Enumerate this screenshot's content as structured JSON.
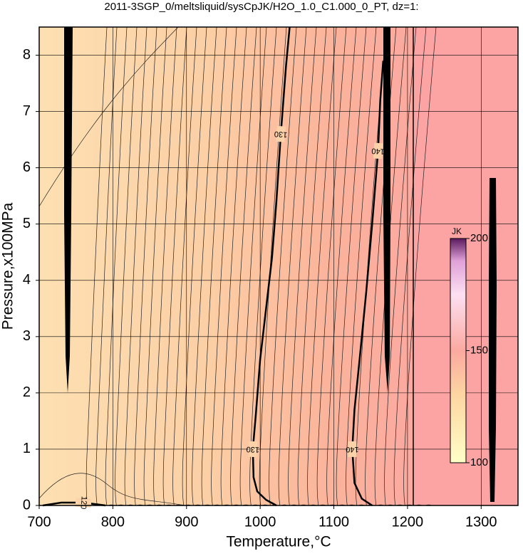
{
  "chart_data": {
    "type": "contour",
    "title": "2011-3SGP_0/meltsliquid/sysCpJK/H2O_1.0_C1.000_0_PT, dz=1:",
    "xlabel": "Temperature,°C",
    "ylabel": "Pressure,x100MPa",
    "xlim": [
      700,
      1350
    ],
    "ylim": [
      0,
      8.5
    ],
    "xticks": [
      700,
      800,
      900,
      1000,
      1100,
      1200,
      1300
    ],
    "yticks": [
      0,
      1,
      2,
      3,
      4,
      5,
      6,
      7,
      8
    ],
    "grid": true,
    "contours": [
      {
        "level": 130,
        "x": [
          1040,
          1035,
          1028,
          1022,
          1016
        ],
        "y": [
          8.5,
          7.8,
          6.6,
          5.4,
          4.4
        ]
      },
      {
        "level": 130,
        "x": [
          1016,
          1008,
          1000,
          994,
          990,
          991,
          996,
          1008,
          1022
        ],
        "y": [
          4.4,
          3.5,
          2.6,
          1.6,
          1.0,
          0.5,
          0.25,
          0.1,
          0
        ]
      },
      {
        "level": 140,
        "x": [
          1167,
          1163,
          1160,
          1152,
          1144
        ],
        "y": [
          7.9,
          7.2,
          6.3,
          5.0,
          3.8
        ]
      },
      {
        "level": 140,
        "x": [
          1144,
          1135,
          1128,
          1125,
          1128,
          1138,
          1152
        ],
        "y": [
          3.8,
          2.6,
          1.7,
          1.0,
          0.4,
          0.12,
          0
        ]
      },
      {
        "level": 120,
        "x": [
          705,
          730,
          760,
          790
        ],
        "y": [
          0,
          0.05,
          0.05,
          0
        ]
      }
    ],
    "colorbar": {
      "label": "JK",
      "lim": [
        100,
        200
      ],
      "ticks": [
        100,
        150,
        200
      ]
    }
  }
}
